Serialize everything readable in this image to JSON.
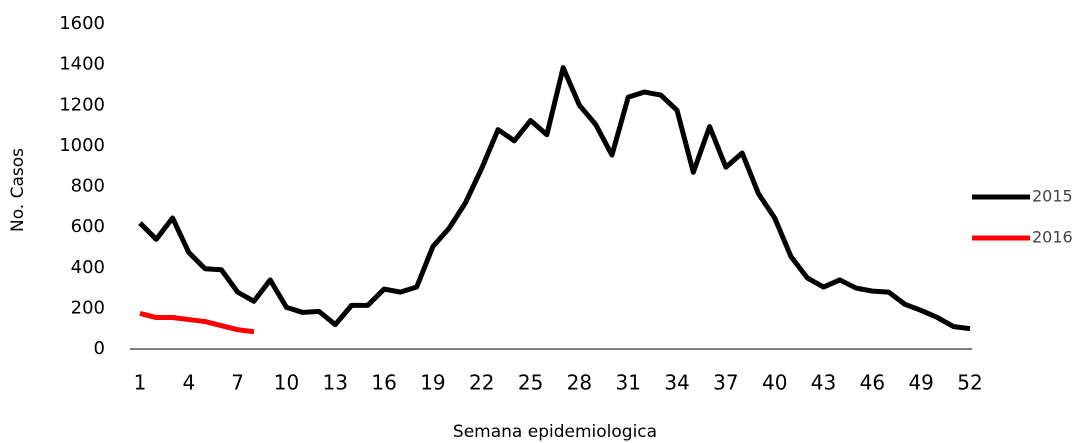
{
  "chart_data": {
    "type": "line",
    "x_label": "Semana epidemiologica",
    "y_label": "No. Casos",
    "x": [
      1,
      2,
      3,
      4,
      5,
      6,
      7,
      8,
      9,
      10,
      11,
      12,
      13,
      14,
      15,
      16,
      17,
      18,
      19,
      20,
      21,
      22,
      23,
      24,
      25,
      26,
      27,
      28,
      29,
      30,
      31,
      32,
      33,
      34,
      35,
      36,
      37,
      38,
      39,
      40,
      41,
      42,
      43,
      44,
      45,
      46,
      47,
      48,
      49,
      50,
      51,
      52
    ],
    "series": [
      {
        "name": "2015",
        "color": "#000000",
        "values": [
          620,
          540,
          645,
          475,
          395,
          390,
          280,
          235,
          340,
          205,
          180,
          185,
          120,
          215,
          215,
          295,
          280,
          305,
          505,
          595,
          720,
          890,
          1080,
          1025,
          1125,
          1055,
          1385,
          1200,
          1105,
          955,
          1240,
          1265,
          1250,
          1175,
          870,
          1095,
          895,
          965,
          765,
          645,
          455,
          350,
          305,
          340,
          300,
          285,
          280,
          220,
          190,
          155,
          110,
          100
        ]
      },
      {
        "name": "2016",
        "color": "#ff0000",
        "values": [
          175,
          155,
          155,
          145,
          135,
          115,
          95,
          85,
          null,
          null,
          null,
          null,
          null,
          null,
          null,
          null,
          null,
          null,
          null,
          null,
          null,
          null,
          null,
          null,
          null,
          null,
          null,
          null,
          null,
          null,
          null,
          null,
          null,
          null,
          null,
          null,
          null,
          null,
          null,
          null,
          null,
          null,
          null,
          null,
          null,
          null,
          null,
          null,
          null,
          null,
          null,
          null
        ]
      }
    ],
    "xlim": [
      1,
      52
    ],
    "xticks": [
      1,
      4,
      7,
      10,
      13,
      16,
      19,
      22,
      25,
      28,
      31,
      34,
      37,
      40,
      43,
      46,
      49,
      52
    ],
    "ylim": [
      0,
      1600
    ],
    "yticks": [
      0,
      200,
      400,
      600,
      800,
      1000,
      1200,
      1400,
      1600
    ],
    "grid": false,
    "legend": "right"
  }
}
